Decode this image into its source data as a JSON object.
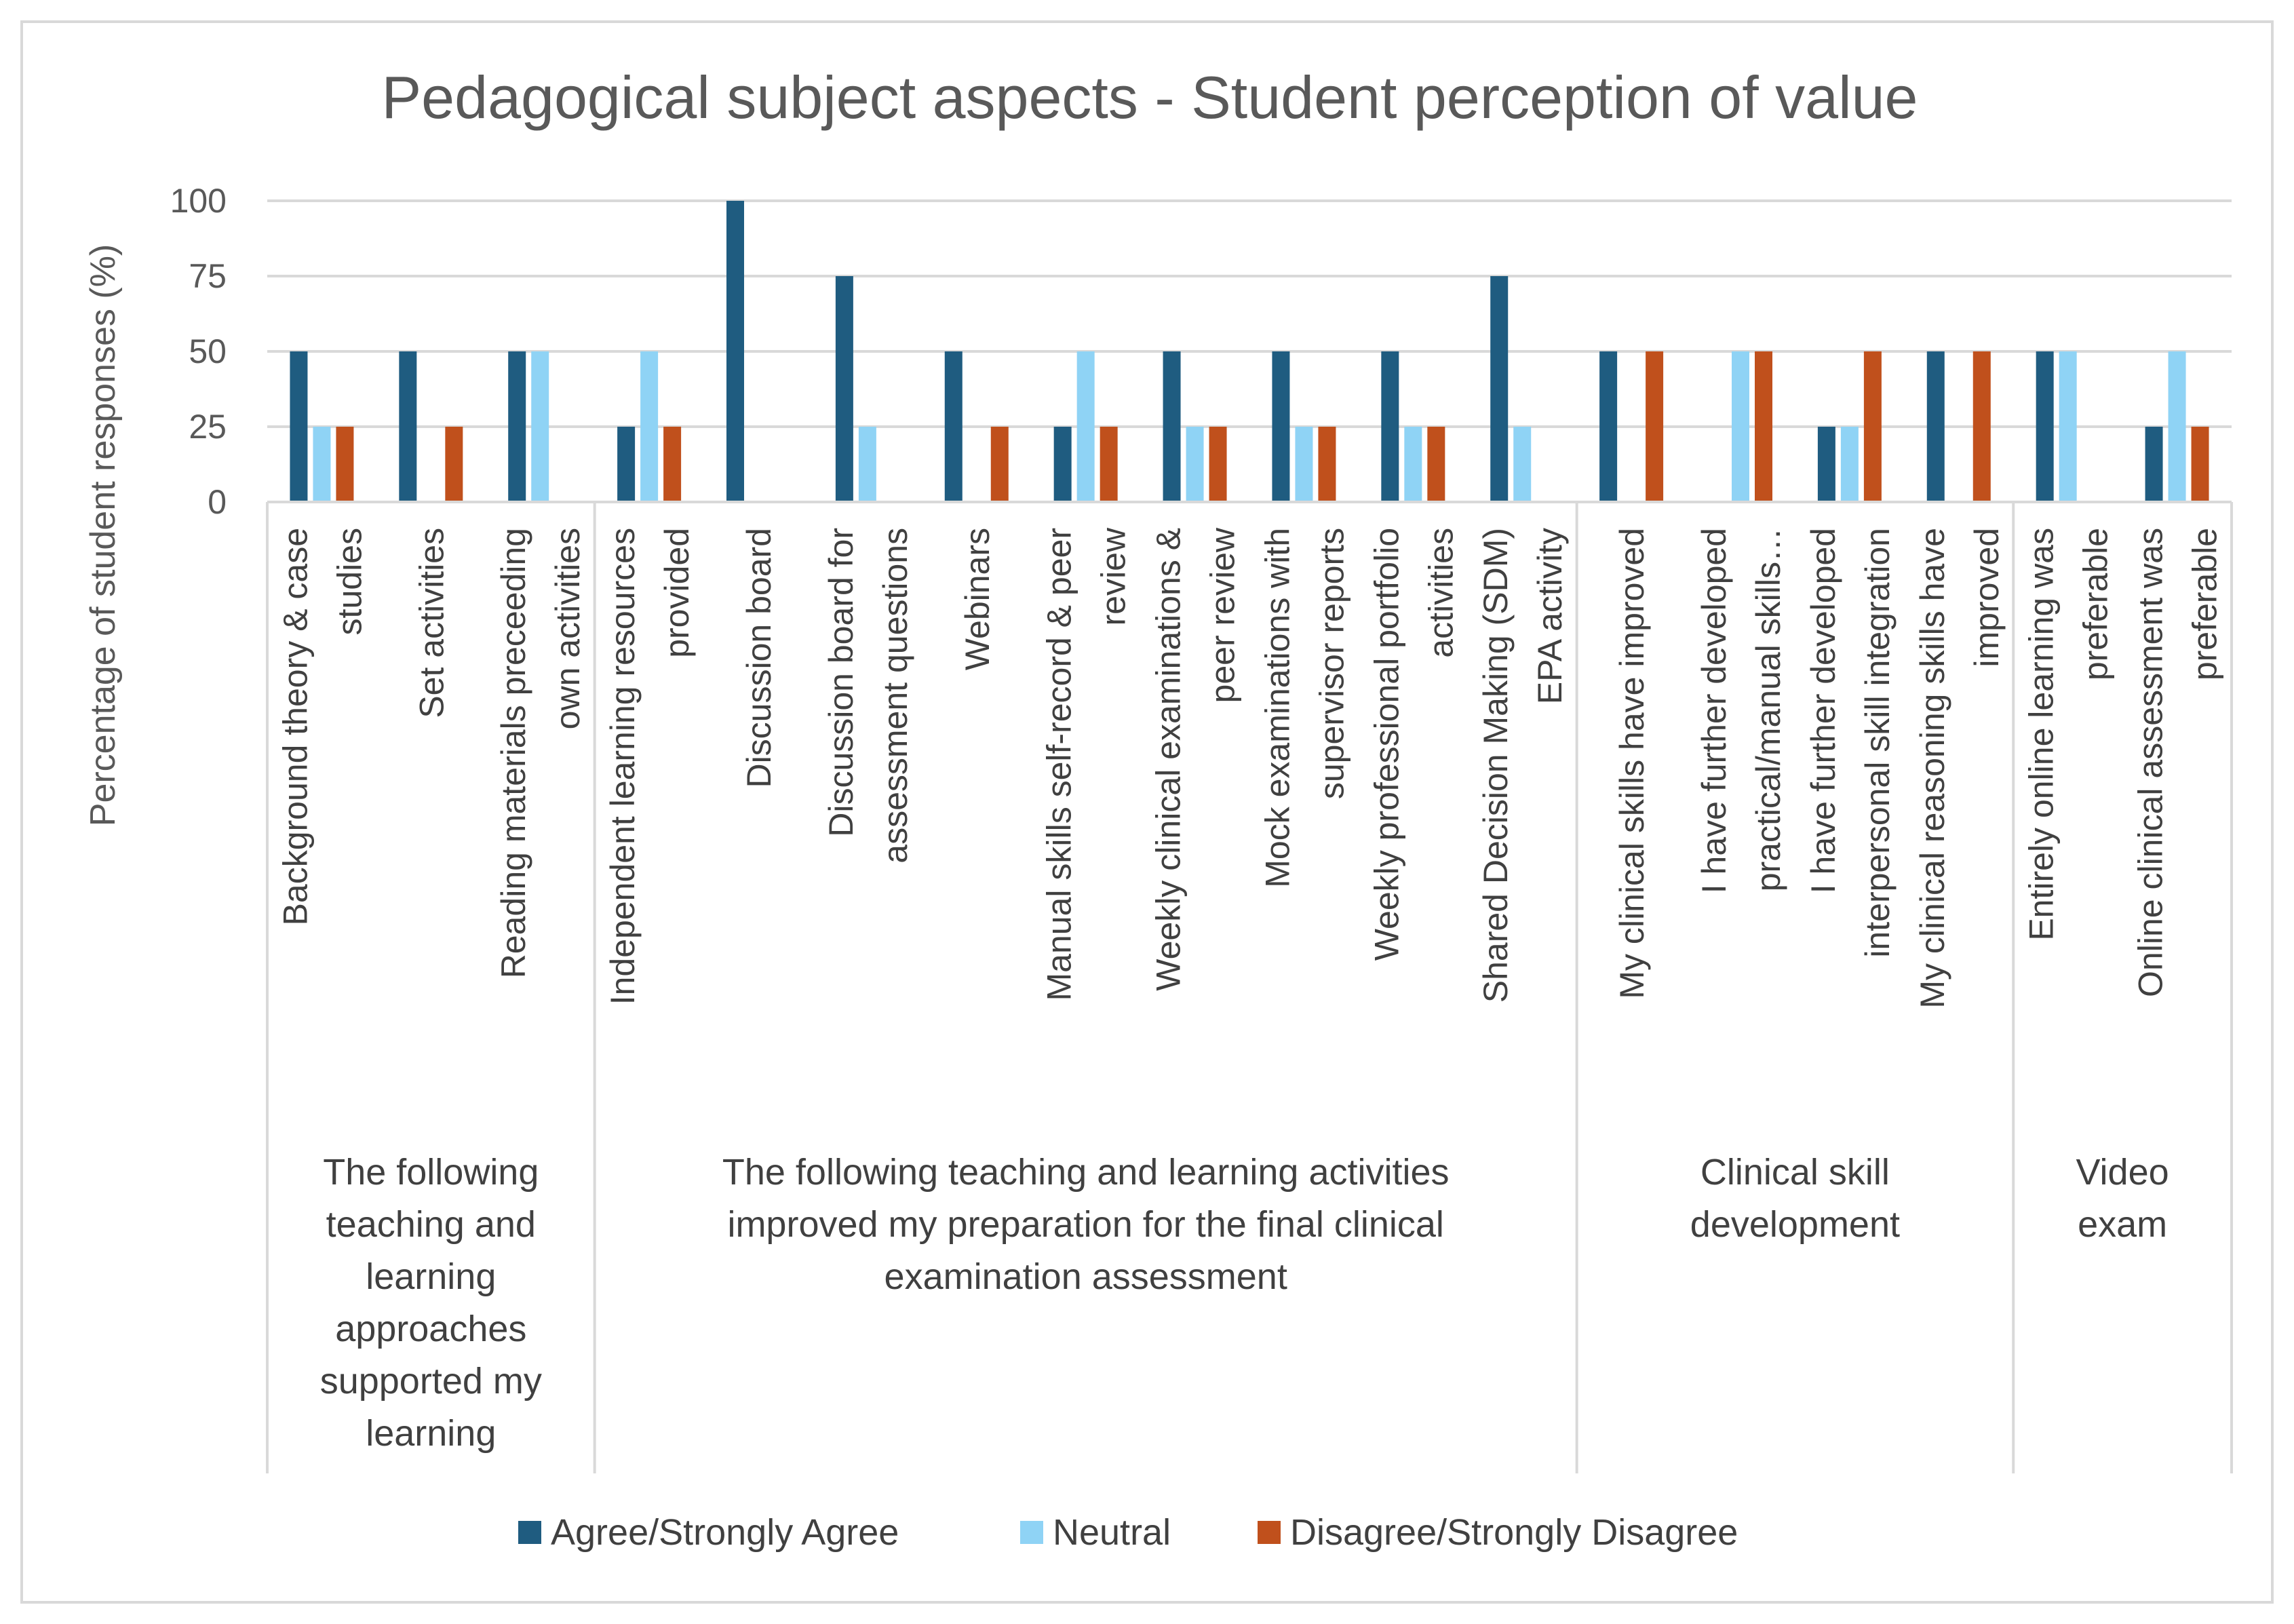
{
  "chart_data": {
    "type": "bar",
    "title": "Pedagogical subject aspects - Student perception of value",
    "ylabel": "Percentage of student responses (%)",
    "xlabel": "",
    "ylim": [
      0,
      100
    ],
    "yticks": [
      0,
      25,
      50,
      75,
      100
    ],
    "grid": true,
    "legend_position": "bottom",
    "categories": [
      [
        "Background theory & case",
        "studies"
      ],
      [
        "Set activities"
      ],
      [
        "Reading materials preceeding",
        "own activities"
      ],
      [
        "Independent learning resources",
        "provided"
      ],
      [
        "Discussion board"
      ],
      [
        "Discussion board for",
        "assessment questions"
      ],
      [
        "Webinars"
      ],
      [
        "Manual skills self-record & peer",
        "review"
      ],
      [
        "Weekly clinical examinations &",
        "peer review"
      ],
      [
        "Mock examinations with",
        "supervisor reports"
      ],
      [
        "Weekly professional portfolio",
        "activities"
      ],
      [
        "Shared Decision Making (SDM)",
        "EPA activity"
      ],
      [
        "My clinical skills have improved"
      ],
      [
        "I have further developed",
        "practical/manual skills…"
      ],
      [
        "I have further developed",
        "interpersonal skill integration"
      ],
      [
        "My clinical reasoning skills have",
        "improved"
      ],
      [
        "Entirely online learning was",
        "preferable"
      ],
      [
        "Online clinical assessment was",
        "preferable"
      ]
    ],
    "groups": [
      {
        "label": [
          "The following",
          "teaching and",
          "learning",
          "approaches",
          "supported my",
          "learning"
        ],
        "start": 0,
        "count": 3
      },
      {
        "label": [
          "The following teaching and learning activities",
          "improved my preparation for the final clinical",
          "examination assessment"
        ],
        "start": 3,
        "count": 9
      },
      {
        "label": [
          "Clinical skill",
          "development"
        ],
        "start": 12,
        "count": 4
      },
      {
        "label": [
          "Video",
          "exam"
        ],
        "start": 16,
        "count": 2
      }
    ],
    "series": [
      {
        "name": "Agree/Strongly Agree",
        "color": "#1f5c80",
        "values": [
          50,
          50,
          50,
          25,
          100,
          75,
          50,
          25,
          50,
          50,
          50,
          75,
          50,
          0,
          25,
          50,
          50,
          25
        ]
      },
      {
        "name": "Neutral",
        "color": "#8fd3f5",
        "values": [
          25,
          0,
          50,
          50,
          0,
          25,
          0,
          50,
          25,
          25,
          25,
          25,
          0,
          50,
          25,
          0,
          50,
          50
        ]
      },
      {
        "name": "Disagree/Strongly Disagree",
        "color": "#c0501c",
        "values": [
          25,
          25,
          0,
          25,
          0,
          0,
          25,
          25,
          25,
          25,
          25,
          0,
          50,
          50,
          50,
          50,
          0,
          25
        ]
      }
    ]
  }
}
